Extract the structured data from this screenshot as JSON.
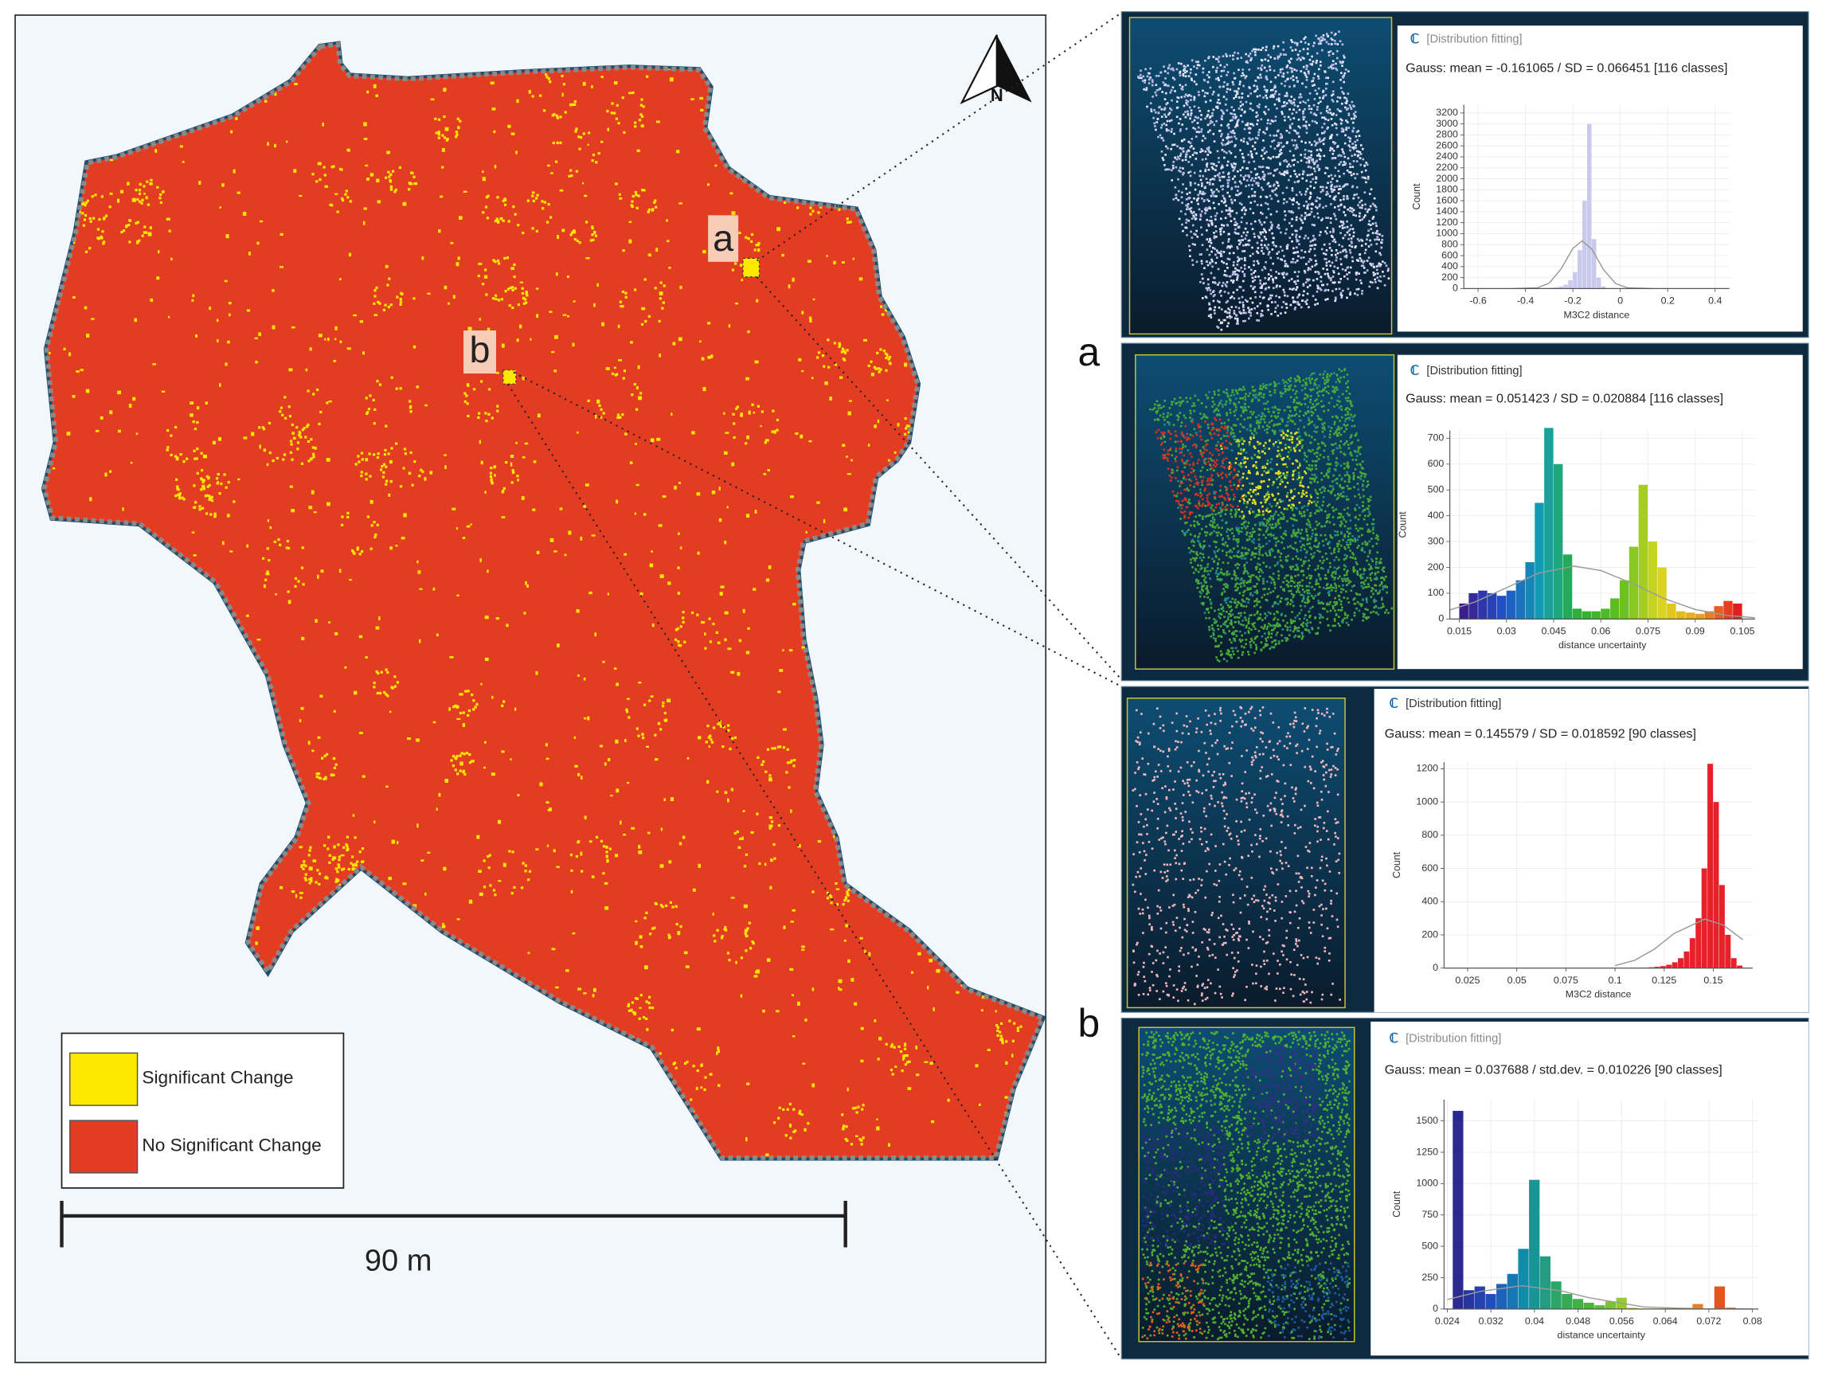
{
  "map": {
    "labels": [
      "a",
      "b"
    ],
    "north": "N",
    "legend": [
      "Significant Change",
      "No Significant Change"
    ],
    "scale_bar": "90 m"
  },
  "panel_labels": [
    "a",
    "b"
  ],
  "chart_data": [
    {
      "type": "histogram",
      "title": "[Distribution fitting]",
      "subtitle": "Gauss: mean = -0.161065 / SD = 0.066451 [116 classes]",
      "x_label": "M3C2 distance",
      "y_label": "Count",
      "color": "#c9c9ee",
      "bins": [
        -0.32,
        -0.3,
        -0.28,
        -0.26,
        -0.24,
        -0.22,
        -0.2,
        -0.18,
        -0.16,
        -0.14,
        -0.12,
        -0.1,
        -0.08,
        -0.06
      ],
      "values": [
        10,
        15,
        25,
        40,
        70,
        150,
        300,
        700,
        1600,
        3000,
        900,
        200,
        40
      ],
      "curve": {
        "color": "#9a9a9a",
        "x": [
          -0.45,
          -0.35,
          -0.3,
          -0.25,
          -0.2,
          -0.161,
          -0.12,
          -0.07,
          -0.02,
          0.03,
          0.13
        ],
        "values": [
          0,
          15,
          98,
          354,
          731,
          870,
          718,
          340,
          92,
          14,
          0
        ]
      },
      "xlim": [
        -0.66,
        0.46
      ],
      "ylim": [
        0,
        3350
      ],
      "xticks": [
        -0.6,
        -0.4,
        -0.2,
        0,
        0.2,
        0.4
      ],
      "yticks": [
        0,
        200,
        400,
        600,
        800,
        1000,
        1200,
        1400,
        1600,
        1800,
        2000,
        2200,
        2400,
        2600,
        2800,
        3000,
        3200
      ]
    },
    {
      "type": "histogram",
      "title": "[Distribution fitting]",
      "subtitle": "Gauss: mean = 0.051423 / SD = 0.020884 [116 classes]",
      "x_label": "distance uncertainty",
      "y_label": "Count",
      "colors": [
        "#3b1e8c",
        "#2050c8",
        "#10a0b0",
        "#30b030",
        "#60c020",
        "#d8d820",
        "#f0a020",
        "#e02020"
      ],
      "bins": [
        0.015,
        0.018,
        0.021,
        0.024,
        0.027,
        0.03,
        0.033,
        0.036,
        0.039,
        0.042,
        0.045,
        0.048,
        0.051,
        0.054,
        0.057,
        0.06,
        0.063,
        0.066,
        0.069,
        0.072,
        0.075,
        0.078,
        0.081,
        0.084,
        0.087,
        0.09,
        0.093,
        0.096,
        0.099,
        0.102,
        0.105
      ],
      "values": [
        60,
        100,
        110,
        100,
        90,
        110,
        150,
        220,
        450,
        740,
        600,
        250,
        40,
        30,
        30,
        40,
        80,
        150,
        280,
        520,
        300,
        200,
        60,
        30,
        25,
        20,
        30,
        50,
        70,
        60
      ],
      "curve": {
        "color": "#9a9a9a",
        "x": [
          0.012,
          0.02,
          0.03,
          0.04,
          0.0514,
          0.06,
          0.07,
          0.08,
          0.09,
          0.1,
          0.109
        ],
        "values": [
          35,
          66,
          121,
          177,
          205,
          188,
          138,
          80,
          37,
          14,
          5
        ]
      },
      "xlim": [
        0.012,
        0.109
      ],
      "ylim": [
        0,
        730
      ],
      "xticks": [
        0.015,
        0.03,
        0.045,
        0.06,
        0.075,
        0.09,
        0.105
      ],
      "yticks": [
        0,
        100,
        200,
        300,
        400,
        500,
        600,
        700
      ]
    },
    {
      "type": "histogram",
      "title": "[Distribution fitting]",
      "subtitle": "Gauss: mean = 0.145579 / SD = 0.018592 [90 classes]",
      "x_label": "M3C2 distance",
      "y_label": "Count",
      "color": "#e8202a",
      "bins": [
        0.111,
        0.114,
        0.117,
        0.12,
        0.123,
        0.126,
        0.129,
        0.132,
        0.135,
        0.138,
        0.141,
        0.144,
        0.147,
        0.15,
        0.153,
        0.156,
        0.159,
        0.162,
        0.165
      ],
      "values": [
        2,
        3,
        5,
        8,
        12,
        20,
        35,
        60,
        100,
        180,
        300,
        600,
        1230,
        1000,
        500,
        200,
        60,
        15
      ],
      "curve": {
        "color": "#9a9a9a",
        "x": [
          0.1,
          0.11,
          0.12,
          0.13,
          0.1456,
          0.155,
          0.165
        ],
        "values": [
          15,
          47,
          114,
          208,
          295,
          260,
          171
        ]
      },
      "xlim": [
        0.013,
        0.17
      ],
      "ylim": [
        0,
        1240
      ],
      "xticks": [
        0.025,
        0.05,
        0.075,
        0.1,
        0.125,
        0.15
      ],
      "yticks": [
        0,
        200,
        400,
        600,
        800,
        1000,
        1200
      ]
    },
    {
      "type": "histogram",
      "title": "[Distribution fitting]",
      "subtitle": "Gauss: mean = 0.037688 / std.dev. = 0.010226 [90 classes]",
      "x_label": "distance uncertainty",
      "y_label": "Count",
      "colors": [
        "#2a2a90",
        "#2050c0",
        "#1090a8",
        "#30a860",
        "#50b830",
        "#a8d030",
        "#e8d020",
        "#f08020",
        "#e04020"
      ],
      "bins": [
        0.025,
        0.027,
        0.029,
        0.031,
        0.033,
        0.035,
        0.037,
        0.039,
        0.041,
        0.043,
        0.045,
        0.047,
        0.049,
        0.051,
        0.053,
        0.055,
        0.057,
        0.059,
        0.061,
        0.063,
        0.065,
        0.067,
        0.069,
        0.071,
        0.073,
        0.075,
        0.077
      ],
      "values": [
        1580,
        150,
        180,
        120,
        200,
        280,
        480,
        1030,
        420,
        220,
        120,
        80,
        50,
        30,
        60,
        90,
        10,
        5,
        5,
        5,
        5,
        10,
        40,
        5,
        180,
        10
      ],
      "curve": {
        "color": "#9a9a9a",
        "x": [
          0.024,
          0.03,
          0.0377,
          0.045,
          0.05,
          0.06,
          0.07,
          0.08
        ],
        "values": [
          76,
          140,
          186,
          144,
          90,
          17,
          1,
          0
        ]
      },
      "xlim": [
        0.0234,
        0.0811
      ],
      "ylim": [
        0,
        1670
      ],
      "xticks": [
        0.024,
        0.032,
        0.04,
        0.048,
        0.056,
        0.064,
        0.072,
        0.08
      ],
      "yticks": [
        0,
        250,
        500,
        750,
        1000,
        1250,
        1500
      ]
    }
  ]
}
